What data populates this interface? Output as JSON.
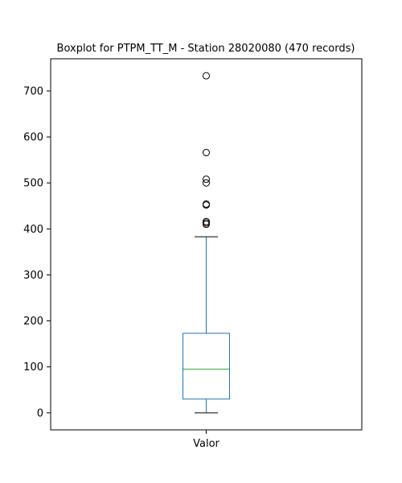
{
  "chart_data": {
    "type": "box",
    "title": "Boxplot for PTPM_TT_M - Station 28020080 (470 records)",
    "categories": [
      "Valor"
    ],
    "xlabel": "",
    "ylabel": "",
    "ylim": [
      -37,
      770
    ],
    "yticks": [
      0,
      100,
      200,
      300,
      400,
      500,
      600,
      700
    ],
    "grid": false,
    "series": [
      {
        "whisker_low": 0,
        "q1": 30,
        "median": 95,
        "q3": 173,
        "whisker_high": 383,
        "outliers": [
          410,
          413,
          416,
          452,
          454,
          500,
          508,
          566,
          733
        ]
      }
    ],
    "colors": {
      "box": "#1f77b4",
      "median": "#2ca02c",
      "caps": "#000000",
      "outlier_edge": "#000000"
    }
  }
}
